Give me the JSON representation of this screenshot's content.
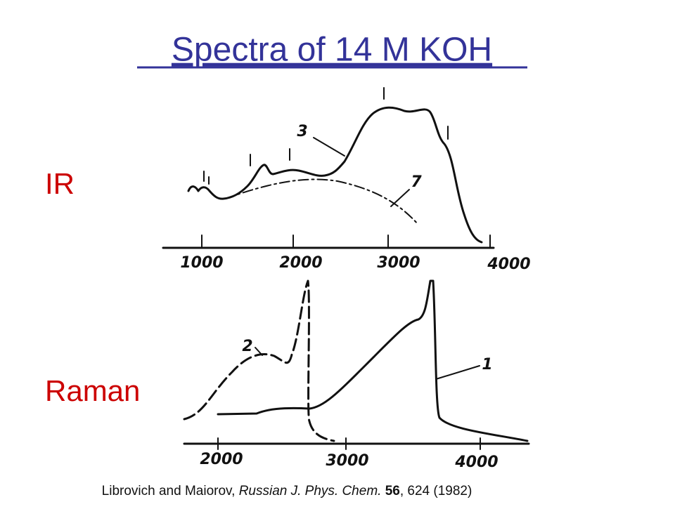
{
  "title": "Spectra of 14 M KOH",
  "ir": {
    "label": "IR",
    "x_ticks": [
      "1000",
      "2000",
      "3000",
      "4000"
    ],
    "curve_labels": [
      "3",
      "7"
    ]
  },
  "raman": {
    "label": "Raman",
    "x_ticks": [
      "2000",
      "3000",
      "4000"
    ],
    "curve_labels": [
      "2",
      "1"
    ]
  },
  "citation": {
    "authors": "Librovich and Maiorov, ",
    "journal": "Russian J. Phys. Chem.",
    "volume": "56",
    "pages": ", 624 (1982)"
  }
}
